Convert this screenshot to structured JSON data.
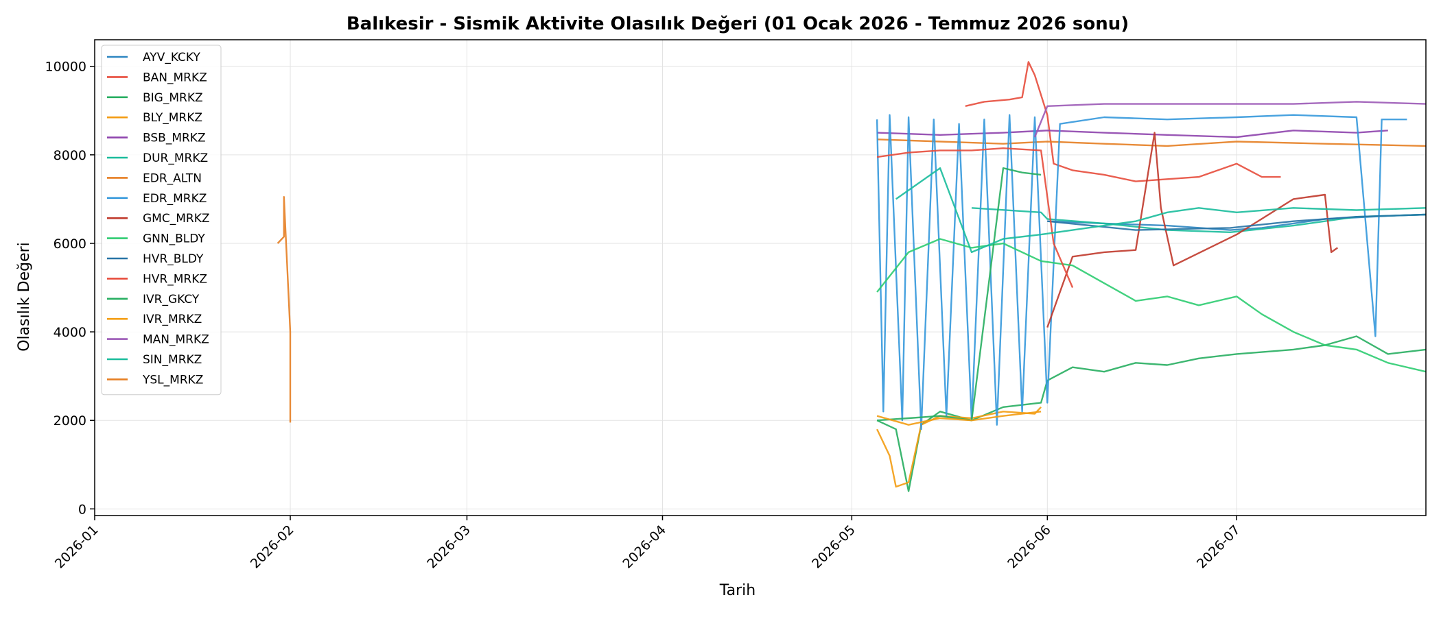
{
  "chart_data": {
    "type": "line",
    "title": "Balıkesir - Sismik Aktivite Olasılık Değeri (01 Ocak 2026 - Temmuz 2026 sonu)",
    "xlabel": "Tarih",
    "ylabel": "Olasılık Değeri",
    "xlim": [
      "2026-01-01",
      "2026-07-31"
    ],
    "ylim": [
      -150,
      10600
    ],
    "x_ticks": [
      "2026-01",
      "2026-02",
      "2026-03",
      "2026-04",
      "2026-05",
      "2026-06",
      "2026-07"
    ],
    "y_ticks": [
      0,
      2000,
      4000,
      6000,
      8000,
      10000
    ],
    "grid": true,
    "legend_position": "upper-left",
    "series": [
      {
        "name": "AYV_KCKY",
        "color": "#2e86c1",
        "points": [
          [
            "2026-06-01",
            6500
          ],
          [
            "2026-06-10",
            6450
          ],
          [
            "2026-06-20",
            6400
          ],
          [
            "2026-06-30",
            6300
          ],
          [
            "2026-07-05",
            6350
          ],
          [
            "2026-07-15",
            6550
          ],
          [
            "2026-07-25",
            6620
          ],
          [
            "2026-07-31",
            6650
          ]
        ]
      },
      {
        "name": "BAN_MRKZ",
        "color": "#e74c3c",
        "points": [
          [
            "2026-05-19",
            9100
          ],
          [
            "2026-05-22",
            9200
          ],
          [
            "2026-05-26",
            9250
          ],
          [
            "2026-05-28",
            9300
          ],
          [
            "2026-05-29",
            10100
          ],
          [
            "2026-05-30",
            9800
          ],
          [
            "2026-06-01",
            8900
          ],
          [
            "2026-06-02",
            7800
          ],
          [
            "2026-06-05",
            7650
          ],
          [
            "2026-06-10",
            7550
          ],
          [
            "2026-06-15",
            7400
          ],
          [
            "2026-06-25",
            7500
          ],
          [
            "2026-07-01",
            7800
          ],
          [
            "2026-07-05",
            7500
          ],
          [
            "2026-07-08",
            7500
          ]
        ]
      },
      {
        "name": "BIG_MRKZ",
        "color": "#27ae60",
        "points": [
          [
            "2026-05-05",
            2000
          ],
          [
            "2026-05-08",
            1800
          ],
          [
            "2026-05-10",
            400
          ],
          [
            "2026-05-12",
            1900
          ],
          [
            "2026-05-15",
            2200
          ],
          [
            "2026-05-20",
            2000
          ],
          [
            "2026-05-25",
            2300
          ],
          [
            "2026-05-31",
            2400
          ],
          [
            "2026-06-01",
            2900
          ],
          [
            "2026-06-05",
            3200
          ],
          [
            "2026-06-10",
            3100
          ],
          [
            "2026-06-15",
            3300
          ],
          [
            "2026-06-20",
            3250
          ],
          [
            "2026-06-25",
            3400
          ],
          [
            "2026-07-01",
            3500
          ],
          [
            "2026-07-10",
            3600
          ],
          [
            "2026-07-15",
            3700
          ],
          [
            "2026-07-20",
            3900
          ],
          [
            "2026-07-25",
            3500
          ],
          [
            "2026-07-31",
            3600
          ]
        ]
      },
      {
        "name": "BLY_MRKZ",
        "color": "#f39c12",
        "points": [
          [
            "2026-05-05",
            1800
          ],
          [
            "2026-05-07",
            1200
          ],
          [
            "2026-05-08",
            500
          ],
          [
            "2026-05-10",
            600
          ],
          [
            "2026-05-12",
            1900
          ],
          [
            "2026-05-15",
            2100
          ],
          [
            "2026-05-20",
            2050
          ],
          [
            "2026-05-25",
            2200
          ],
          [
            "2026-05-30",
            2150
          ],
          [
            "2026-05-31",
            2300
          ]
        ]
      },
      {
        "name": "BSB_MRKZ",
        "color": "#8e44ad",
        "points": [
          [
            "2026-05-05",
            8500
          ],
          [
            "2026-05-15",
            8450
          ],
          [
            "2026-05-25",
            8500
          ],
          [
            "2026-06-01",
            8550
          ],
          [
            "2026-06-10",
            8500
          ],
          [
            "2026-06-20",
            8450
          ],
          [
            "2026-07-01",
            8400
          ],
          [
            "2026-07-10",
            8550
          ],
          [
            "2026-07-20",
            8500
          ],
          [
            "2026-07-25",
            8550
          ]
        ]
      },
      {
        "name": "DUR_MRKZ",
        "color": "#1abc9c",
        "points": [
          [
            "2026-05-20",
            6800
          ],
          [
            "2026-05-31",
            6700
          ],
          [
            "2026-06-01",
            6550
          ],
          [
            "2026-06-10",
            6450
          ],
          [
            "2026-06-20",
            6300
          ],
          [
            "2026-06-30",
            6250
          ],
          [
            "2026-07-10",
            6400
          ],
          [
            "2026-07-20",
            6600
          ],
          [
            "2026-07-31",
            6650
          ]
        ]
      },
      {
        "name": "EDR_ALTN",
        "color": "#e67e22",
        "points": [
          [
            "2026-05-05",
            8350
          ],
          [
            "2026-05-15",
            8300
          ],
          [
            "2026-05-25",
            8250
          ],
          [
            "2026-06-01",
            8300
          ],
          [
            "2026-06-10",
            8250
          ],
          [
            "2026-06-20",
            8200
          ],
          [
            "2026-07-01",
            8300
          ],
          [
            "2026-07-15",
            8250
          ],
          [
            "2026-07-31",
            8200
          ]
        ]
      },
      {
        "name": "EDR_MRKZ",
        "color": "#3498db",
        "points": [
          [
            "2026-05-05",
            8800
          ],
          [
            "2026-05-06",
            2200
          ],
          [
            "2026-05-07",
            8900
          ],
          [
            "2026-05-09",
            2000
          ],
          [
            "2026-05-10",
            8850
          ],
          [
            "2026-05-12",
            1800
          ],
          [
            "2026-05-14",
            8800
          ],
          [
            "2026-05-16",
            2100
          ],
          [
            "2026-05-18",
            8700
          ],
          [
            "2026-05-20",
            2000
          ],
          [
            "2026-05-22",
            8800
          ],
          [
            "2026-05-24",
            1900
          ],
          [
            "2026-05-26",
            8900
          ],
          [
            "2026-05-28",
            2200
          ],
          [
            "2026-05-30",
            8850
          ],
          [
            "2026-06-01",
            2400
          ],
          [
            "2026-06-03",
            8700
          ],
          [
            "2026-06-10",
            8850
          ],
          [
            "2026-06-20",
            8800
          ],
          [
            "2026-07-01",
            8850
          ],
          [
            "2026-07-10",
            8900
          ],
          [
            "2026-07-20",
            8850
          ],
          [
            "2026-07-23",
            3900
          ],
          [
            "2026-07-24",
            8800
          ],
          [
            "2026-07-28",
            8800
          ]
        ]
      },
      {
        "name": "GMC_MRKZ",
        "color": "#c0392b",
        "points": [
          [
            "2026-06-01",
            4100
          ],
          [
            "2026-06-05",
            5700
          ],
          [
            "2026-06-10",
            5800
          ],
          [
            "2026-06-15",
            5850
          ],
          [
            "2026-06-18",
            8500
          ],
          [
            "2026-06-19",
            6800
          ],
          [
            "2026-06-21",
            5500
          ],
          [
            "2026-07-01",
            6200
          ],
          [
            "2026-07-10",
            7000
          ],
          [
            "2026-07-15",
            7100
          ],
          [
            "2026-07-16",
            5800
          ],
          [
            "2026-07-17",
            5900
          ]
        ]
      },
      {
        "name": "GNN_BLDY",
        "color": "#2ecc71",
        "points": [
          [
            "2026-05-05",
            4900
          ],
          [
            "2026-05-10",
            5800
          ],
          [
            "2026-05-15",
            6100
          ],
          [
            "2026-05-20",
            5900
          ],
          [
            "2026-05-25",
            6000
          ],
          [
            "2026-05-31",
            5600
          ],
          [
            "2026-06-05",
            5500
          ],
          [
            "2026-06-10",
            5100
          ],
          [
            "2026-06-15",
            4700
          ],
          [
            "2026-06-20",
            4800
          ],
          [
            "2026-06-25",
            4600
          ],
          [
            "2026-07-01",
            4800
          ],
          [
            "2026-07-05",
            4400
          ],
          [
            "2026-07-10",
            4000
          ],
          [
            "2026-07-15",
            3700
          ],
          [
            "2026-07-20",
            3600
          ],
          [
            "2026-07-25",
            3300
          ],
          [
            "2026-07-31",
            3100
          ]
        ]
      },
      {
        "name": "HVR_BLDY",
        "color": "#2874a6",
        "points": [
          [
            "2026-06-01",
            6500
          ],
          [
            "2026-06-15",
            6300
          ],
          [
            "2026-06-30",
            6350
          ],
          [
            "2026-07-10",
            6500
          ],
          [
            "2026-07-20",
            6600
          ],
          [
            "2026-07-31",
            6650
          ]
        ]
      },
      {
        "name": "HVR_MRKZ",
        "color": "#e74c3c",
        "points": [
          [
            "2026-05-05",
            7950
          ],
          [
            "2026-05-10",
            8050
          ],
          [
            "2026-05-15",
            8100
          ],
          [
            "2026-05-20",
            8100
          ],
          [
            "2026-05-25",
            8150
          ],
          [
            "2026-05-31",
            8100
          ],
          [
            "2026-06-02",
            6000
          ],
          [
            "2026-06-05",
            5000
          ]
        ]
      },
      {
        "name": "IVR_GKCY",
        "color": "#27ae60",
        "points": [
          [
            "2026-05-05",
            2000
          ],
          [
            "2026-05-10",
            2050
          ],
          [
            "2026-05-15",
            2100
          ],
          [
            "2026-05-20",
            2000
          ],
          [
            "2026-05-25",
            7700
          ],
          [
            "2026-05-28",
            7600
          ],
          [
            "2026-05-31",
            7550
          ]
        ]
      },
      {
        "name": "IVR_MRKZ",
        "color": "#f39c12",
        "points": [
          [
            "2026-05-05",
            2100
          ],
          [
            "2026-05-10",
            1900
          ],
          [
            "2026-05-15",
            2050
          ],
          [
            "2026-05-20",
            2000
          ],
          [
            "2026-05-25",
            2100
          ],
          [
            "2026-05-31",
            2200
          ]
        ]
      },
      {
        "name": "MAN_MRKZ",
        "color": "#9b59b6",
        "points": [
          [
            "2026-05-30",
            8400
          ],
          [
            "2026-06-01",
            9100
          ],
          [
            "2026-06-10",
            9150
          ],
          [
            "2026-06-20",
            9150
          ],
          [
            "2026-07-01",
            9150
          ],
          [
            "2026-07-10",
            9150
          ],
          [
            "2026-07-20",
            9200
          ],
          [
            "2026-07-31",
            9150
          ]
        ]
      },
      {
        "name": "SIN_MRKZ",
        "color": "#1abc9c",
        "points": [
          [
            "2026-05-08",
            7000
          ],
          [
            "2026-05-15",
            7700
          ],
          [
            "2026-05-20",
            5800
          ],
          [
            "2026-05-25",
            6100
          ],
          [
            "2026-05-31",
            6200
          ],
          [
            "2026-06-05",
            6300
          ],
          [
            "2026-06-10",
            6400
          ],
          [
            "2026-06-15",
            6500
          ],
          [
            "2026-06-20",
            6700
          ],
          [
            "2026-06-25",
            6800
          ],
          [
            "2026-07-01",
            6700
          ],
          [
            "2026-07-10",
            6800
          ],
          [
            "2026-07-20",
            6750
          ],
          [
            "2026-07-31",
            6800
          ]
        ]
      },
      {
        "name": "YSL_MRKZ",
        "color": "#e67e22",
        "points": [
          [
            "2026-01-30",
            6000
          ],
          [
            "2026-01-31",
            6150
          ],
          [
            "2026-01-31",
            7050
          ],
          [
            "2026-02-01",
            4000
          ],
          [
            "2026-02-01",
            1950
          ]
        ]
      }
    ]
  }
}
